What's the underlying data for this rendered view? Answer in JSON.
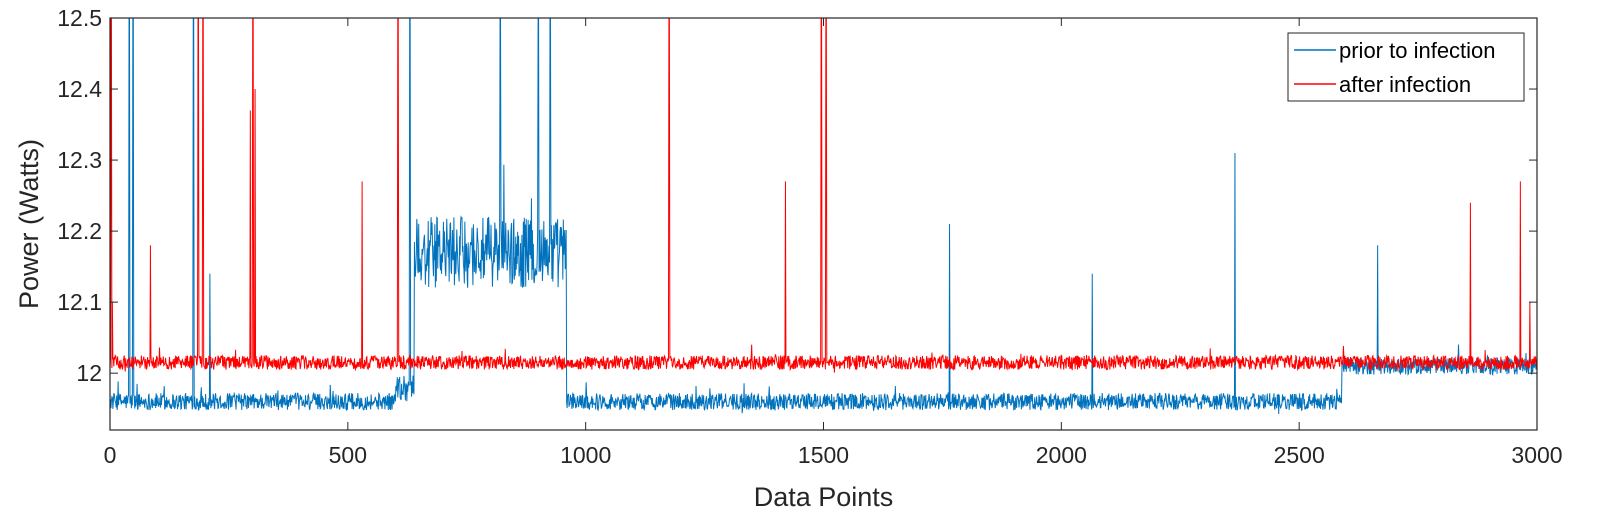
{
  "chart_data": {
    "type": "line",
    "title": "",
    "xlabel": "Data Points",
    "ylabel": "Power (Watts)",
    "xlim": [
      0,
      3000
    ],
    "ylim": [
      11.92,
      12.5
    ],
    "x_ticks": [
      {
        "value": 0,
        "label": "0"
      },
      {
        "value": 500,
        "label": "500"
      },
      {
        "value": 1000,
        "label": "1000"
      },
      {
        "value": 1500,
        "label": "1500"
      },
      {
        "value": 2000,
        "label": "2000"
      },
      {
        "value": 2500,
        "label": "2500"
      },
      {
        "value": 3000,
        "label": "3000"
      }
    ],
    "y_ticks": [
      {
        "value": 12.0,
        "label": "12"
      },
      {
        "value": 12.1,
        "label": "12.1"
      },
      {
        "value": 12.2,
        "label": "12.2"
      },
      {
        "value": 12.3,
        "label": "12.3"
      },
      {
        "value": 12.4,
        "label": "12.4"
      },
      {
        "value": 12.5,
        "label": "12.5"
      }
    ],
    "grid": false,
    "legend_position": "top-right",
    "series": [
      {
        "name": "prior to infection",
        "color": "#0072BD",
        "segments": [
          {
            "x_start": 0,
            "x_end": 600,
            "baseline": 11.96,
            "noise": 0.012
          },
          {
            "x_start": 600,
            "x_end": 640,
            "baseline": 11.98,
            "noise": 0.02
          },
          {
            "x_start": 640,
            "x_end": 960,
            "baseline": 12.17,
            "noise": 0.05
          },
          {
            "x_start": 960,
            "x_end": 2590,
            "baseline": 11.96,
            "noise": 0.012
          },
          {
            "x_start": 2590,
            "x_end": 3000,
            "baseline": 12.01,
            "noise": 0.012
          }
        ],
        "spikes": [
          {
            "x": 40,
            "y": 12.5
          },
          {
            "x": 48,
            "y": 12.5
          },
          {
            "x": 175,
            "y": 12.5
          },
          {
            "x": 210,
            "y": 12.14
          },
          {
            "x": 630,
            "y": 12.5
          },
          {
            "x": 820,
            "y": 12.5
          },
          {
            "x": 900,
            "y": 12.5
          },
          {
            "x": 925,
            "y": 12.5
          },
          {
            "x": 1765,
            "y": 12.21
          },
          {
            "x": 2065,
            "y": 12.14
          },
          {
            "x": 2365,
            "y": 12.31
          },
          {
            "x": 2665,
            "y": 12.18
          }
        ]
      },
      {
        "name": "after infection",
        "color": "#FF0000",
        "segments": [
          {
            "x_start": 0,
            "x_end": 3000,
            "baseline": 12.015,
            "noise": 0.01
          }
        ],
        "spikes": [
          {
            "x": 2,
            "y": 12.5
          },
          {
            "x": 5,
            "y": 12.1
          },
          {
            "x": 85,
            "y": 12.18
          },
          {
            "x": 185,
            "y": 12.5
          },
          {
            "x": 195,
            "y": 12.5
          },
          {
            "x": 295,
            "y": 12.37
          },
          {
            "x": 300,
            "y": 12.5
          },
          {
            "x": 305,
            "y": 12.4
          },
          {
            "x": 530,
            "y": 12.27
          },
          {
            "x": 605,
            "y": 12.5
          },
          {
            "x": 1175,
            "y": 12.5
          },
          {
            "x": 1420,
            "y": 12.27
          },
          {
            "x": 1495,
            "y": 12.5
          },
          {
            "x": 1505,
            "y": 12.5
          },
          {
            "x": 2860,
            "y": 12.24
          },
          {
            "x": 2965,
            "y": 12.27
          },
          {
            "x": 2985,
            "y": 12.1
          }
        ]
      }
    ]
  }
}
